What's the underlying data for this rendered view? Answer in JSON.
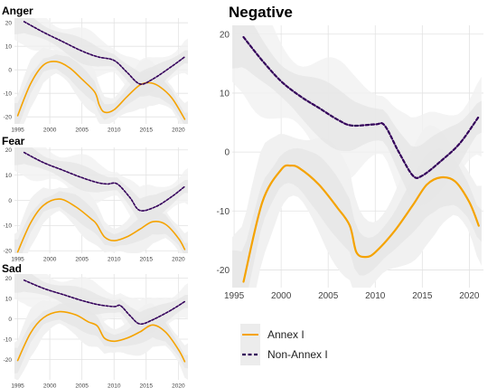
{
  "colors": {
    "annex": "#f5a300",
    "nonannex": "#33005a",
    "band_outer": "#f1f1f1",
    "band_inner": "#e6e6e6",
    "grid": "#e2e2e2"
  },
  "legend": {
    "entries": [
      "Annex I",
      "Non-Annex I"
    ]
  },
  "chart_data": [
    {
      "type": "line",
      "title": "Anger",
      "xlabel": "",
      "ylabel": "",
      "xlim": [
        1994.5,
        2021.5
      ],
      "ylim": [
        -23,
        22
      ],
      "x_ticks": [
        "1995",
        "2000",
        "2005",
        "2010",
        "2015",
        "2020"
      ],
      "y_ticks": [
        "20",
        "10",
        "0",
        "-10",
        "-20"
      ],
      "grid": true,
      "series": [
        {
          "name": "Annex I",
          "style": "solid",
          "x": [
            1995,
            1997,
            1999,
            2001,
            2003,
            2005,
            2007,
            2007.7,
            2008.5,
            2010,
            2012,
            2014,
            2015.5,
            2017,
            2019,
            2021
          ],
          "y": [
            -19.5,
            -6,
            2,
            3.5,
            1,
            -4,
            -9.5,
            -15,
            -18,
            -17,
            -11.5,
            -6.5,
            -5.5,
            -7,
            -12,
            -21
          ]
        },
        {
          "name": "Non-Annex I",
          "style": "dashed",
          "x": [
            1996,
            1999,
            2002,
            2005,
            2007.5,
            2010,
            2012,
            2014,
            2016,
            2019,
            2021
          ],
          "y": [
            20.5,
            16,
            12,
            8,
            5.5,
            4,
            -1,
            -6,
            -4,
            1.5,
            5.5
          ]
        }
      ]
    },
    {
      "type": "line",
      "title": "Fear",
      "xlabel": "",
      "ylabel": "",
      "xlim": [
        1994.5,
        2021.5
      ],
      "ylim": [
        -21,
        21
      ],
      "x_ticks": [
        "1995",
        "2000",
        "2005",
        "2010",
        "2015",
        "2020"
      ],
      "y_ticks": [
        "20",
        "10",
        "0",
        "-10",
        "-20"
      ],
      "grid": true,
      "series": [
        {
          "name": "Annex I",
          "style": "solid",
          "x": [
            1995,
            1997,
            1999,
            2001.5,
            2004,
            2006.5,
            2007.3,
            2008.5,
            2010,
            2012,
            2014,
            2016,
            2018,
            2020,
            2021
          ],
          "y": [
            -20.5,
            -9,
            -2,
            0.5,
            -2.5,
            -7.5,
            -9.5,
            -14.5,
            -16,
            -14.5,
            -11.5,
            -8.5,
            -9.5,
            -15,
            -19.5
          ]
        },
        {
          "name": "Non-Annex I",
          "style": "dashed",
          "x": [
            1996,
            1999,
            2002,
            2005,
            2007.5,
            2009,
            2010.5,
            2012.5,
            2014,
            2016.5,
            2019,
            2021
          ],
          "y": [
            19,
            15,
            12,
            9,
            7,
            6.5,
            6.5,
            1,
            -4,
            -2.5,
            1.5,
            5.5
          ]
        }
      ]
    },
    {
      "type": "line",
      "title": "Sad",
      "xlabel": "",
      "ylabel": "",
      "xlim": [
        1994.5,
        2021.5
      ],
      "ylim": [
        -30,
        22
      ],
      "x_ticks": [
        "1995",
        "2000",
        "2005",
        "2010",
        "2015",
        "2020"
      ],
      "y_ticks": [
        "20",
        "10",
        "0",
        "-10",
        "-20"
      ],
      "grid": true,
      "series": [
        {
          "name": "Annex I",
          "style": "solid",
          "x": [
            1995,
            1997,
            1999,
            2001.5,
            2004,
            2006,
            2007.4,
            2008.5,
            2010,
            2012,
            2014,
            2016,
            2018,
            2020,
            2021
          ],
          "y": [
            -20.5,
            -7,
            0.5,
            3.5,
            2,
            -1.5,
            -3.5,
            -9.5,
            -11,
            -9.5,
            -6.5,
            -3,
            -6.5,
            -15,
            -21
          ]
        },
        {
          "name": "Non-Annex I",
          "style": "dashed",
          "x": [
            1996,
            1999,
            2002,
            2005,
            2007.5,
            2010,
            2011,
            2012.5,
            2014,
            2016,
            2019,
            2021
          ],
          "y": [
            19,
            15,
            12,
            9,
            7,
            6,
            6.5,
            1.5,
            -2.5,
            -0.5,
            4.5,
            8.5
          ]
        }
      ]
    },
    {
      "type": "line",
      "title": "Negative",
      "xlabel": "",
      "ylabel": "",
      "xlim": [
        1994.8,
        2021.5
      ],
      "ylim": [
        -23,
        21.5
      ],
      "x_ticks": [
        "1995",
        "2000",
        "2005",
        "2010",
        "2015",
        "2020"
      ],
      "y_ticks": [
        "20",
        "10",
        "0",
        "-10",
        "-20"
      ],
      "grid": true,
      "series": [
        {
          "name": "Annex I",
          "style": "solid",
          "x": [
            1996,
            1998,
            2000,
            2001,
            2002,
            2004,
            2006,
            2007.3,
            2008,
            2009,
            2010,
            2012,
            2014,
            2015.5,
            2017,
            2018.5,
            2020,
            2021
          ],
          "y": [
            -22,
            -8.5,
            -3,
            -2.3,
            -2.8,
            -5.5,
            -9.5,
            -12.5,
            -17,
            -17.8,
            -17,
            -13.5,
            -9,
            -5.5,
            -4.3,
            -5,
            -8.5,
            -12.5
          ]
        },
        {
          "name": "Non-Annex I",
          "style": "dashed",
          "x": [
            1996,
            1998,
            2000,
            2002,
            2004,
            2006,
            2007.5,
            2010,
            2011,
            2012.5,
            2014,
            2015,
            2017,
            2019,
            2021
          ],
          "y": [
            19.5,
            15.5,
            12,
            9.5,
            7.5,
            5.5,
            4.5,
            4.7,
            4.5,
            0,
            -4,
            -4,
            -1.5,
            1.5,
            6
          ]
        }
      ]
    }
  ]
}
